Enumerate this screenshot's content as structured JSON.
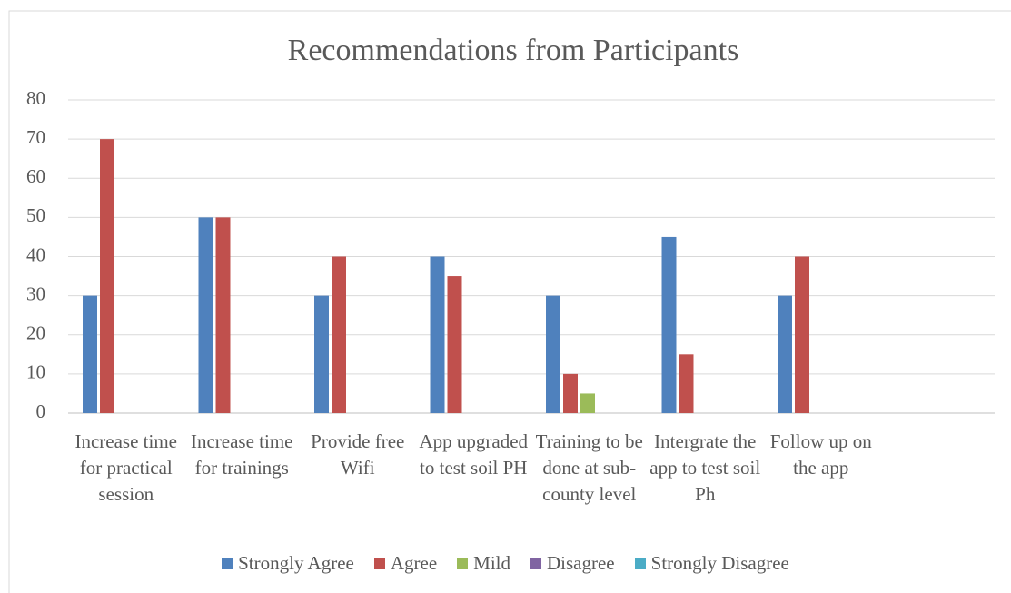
{
  "chart_data": {
    "type": "bar",
    "title": "Recommendations from Participants",
    "categories": [
      "Increase time for practical session",
      "Increase time for trainings",
      "Provide free Wifi",
      "App upgraded to test soil PH",
      "Training to be done at sub-county level",
      "Intergrate the app to test soil Ph",
      "Follow up on the app",
      null
    ],
    "series": [
      {
        "name": "Strongly Agree",
        "color": "#4f81bd",
        "values": [
          30,
          50,
          30,
          40,
          30,
          45,
          30,
          null
        ]
      },
      {
        "name": "Agree",
        "color": "#c0504d",
        "values": [
          70,
          50,
          40,
          35,
          10,
          15,
          40,
          null
        ]
      },
      {
        "name": "Mild",
        "color": "#9bbb59",
        "values": [
          null,
          null,
          null,
          null,
          5,
          null,
          null,
          null
        ]
      },
      {
        "name": "Disagree",
        "color": "#8064a2",
        "values": [
          null,
          null,
          null,
          null,
          null,
          null,
          null,
          null
        ]
      },
      {
        "name": "Strongly Disagree",
        "color": "#4bacc6",
        "values": [
          null,
          null,
          null,
          null,
          null,
          null,
          null,
          null
        ]
      }
    ],
    "ylim": [
      0,
      80
    ],
    "yticks": [
      0,
      10,
      20,
      30,
      40,
      50,
      60,
      70,
      80
    ],
    "grid": true,
    "legend": "bottom"
  }
}
